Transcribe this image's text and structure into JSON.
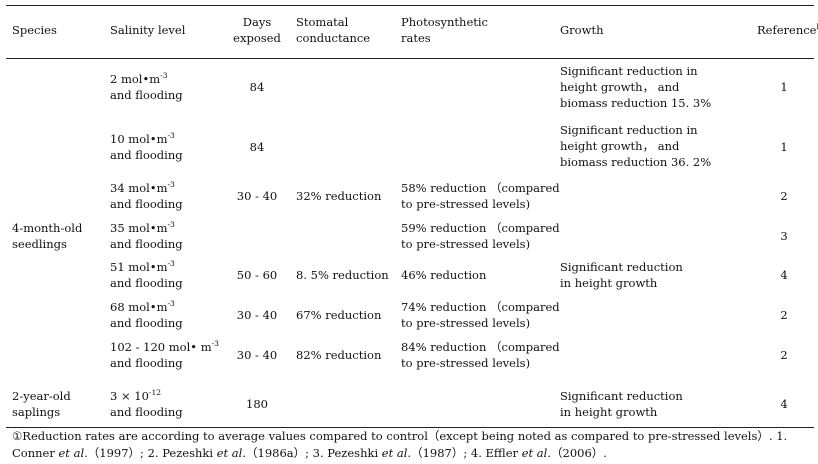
{
  "table": {
    "headers": {
      "species": "Species",
      "salinity": "Salinity level",
      "days": [
        "Days",
        "exposed"
      ],
      "stomatal": [
        "Stomatal",
        "conductance"
      ],
      "photo": [
        "Photosynthetic",
        "rates"
      ],
      "growth": "Growth",
      "reference": "Reference",
      "reference_sup": "b"
    },
    "species_groups": [
      {
        "lines": [
          "4-month-old",
          "seedlings"
        ]
      },
      {
        "lines": [
          "2-year-old",
          "saplings"
        ]
      }
    ],
    "rows": [
      {
        "salinity_value": "2 mol•m",
        "salinity_exp": "-3",
        "salinity_tail": "and flooding",
        "days": "84",
        "stomatal": "",
        "photo": [
          "",
          ""
        ],
        "growth": [
          "Significant reduction in",
          "height growth， and",
          "biomass reduction 15. 3%"
        ],
        "ref": "1"
      },
      {
        "salinity_value": "10 mol•m",
        "salinity_exp": "-3",
        "salinity_tail": "and flooding",
        "days": "84",
        "stomatal": "",
        "photo": [
          "",
          ""
        ],
        "growth": [
          "Significant reduction in",
          "height growth， and",
          "biomass reduction 36. 2%"
        ],
        "ref": "1"
      },
      {
        "salinity_value": "34 mol•m",
        "salinity_exp": "-3",
        "salinity_tail": "and flooding",
        "days": "30 - 40",
        "stomatal": "32% reduction",
        "photo": [
          "58%  reduction （compared",
          "to pre-stressed levels)"
        ],
        "growth": [],
        "ref": "2"
      },
      {
        "salinity_value": "35 mol•m",
        "salinity_exp": "-3",
        "salinity_tail": "and flooding",
        "days": "",
        "stomatal": "",
        "photo": [
          "59%  reduction （compared",
          "to pre-stressed levels)"
        ],
        "growth": [],
        "ref": "3"
      },
      {
        "salinity_value": "51 mol•m",
        "salinity_exp": "-3",
        "salinity_tail": "and flooding",
        "days": "50 - 60",
        "stomatal": "8. 5%  reduction",
        "photo": [
          "46%  reduction",
          ""
        ],
        "growth": [
          "Significant reduction",
          "in height growth"
        ],
        "ref": "4"
      },
      {
        "salinity_value": "68 mol•m",
        "salinity_exp": "-3",
        "salinity_tail": "and flooding",
        "days": "30 - 40",
        "stomatal": "67%  reduction",
        "photo": [
          "74%  reduction （compared",
          "to pre-stressed levels)"
        ],
        "growth": [],
        "ref": "2"
      },
      {
        "salinity_value": "102 - 120 mol• m",
        "salinity_exp": "-3",
        "salinity_tail": "and flooding",
        "days": "30 - 40",
        "stomatal": "82%  reduction",
        "photo": [
          "84%  reduction （compared",
          "to pre-stressed levels)"
        ],
        "growth": [],
        "ref": "2"
      },
      {
        "salinity_value": "3 × 10",
        "salinity_exp": "-12",
        "salinity_tail": "and flooding",
        "days": "180",
        "stomatal": "",
        "photo": [
          "",
          ""
        ],
        "growth": [
          "Significant reduction",
          "in height growth"
        ],
        "ref": "4"
      }
    ],
    "footnote": {
      "p1": "①Reduction rates are according to average values compared to control（except being noted as compared to pre-stressed levels）. 1. Conner ",
      "etal": "et al",
      "p2": ".",
      "p3": "（1997）; 2. Pezeshki ",
      "p4": "（1986a）; 3. Pezeshki ",
      "p5": "（1987）; 4. Effler ",
      "p6": "（2006）."
    }
  }
}
